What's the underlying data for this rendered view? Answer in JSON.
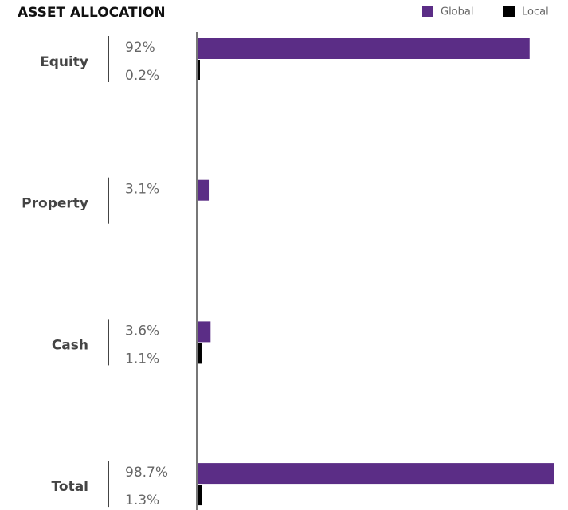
{
  "chart_data": {
    "type": "hbar",
    "title": "ASSET ALLOCATION",
    "categories": [
      "Equity",
      "Property",
      "Cash",
      "Total"
    ],
    "series": [
      {
        "name": "Global",
        "color": "#5b2d86",
        "values": [
          92,
          3.1,
          3.6,
          98.7
        ],
        "value_labels": [
          "92%",
          "3.1%",
          "3.6%",
          "98.7%"
        ]
      },
      {
        "name": "Local",
        "color": "#000000",
        "values": [
          0.2,
          null,
          1.1,
          1.3
        ],
        "value_labels": [
          "0.2%",
          null,
          "1.1%",
          "1.3%"
        ]
      }
    ],
    "xlim": [
      0,
      100
    ],
    "legend": "top-right"
  }
}
